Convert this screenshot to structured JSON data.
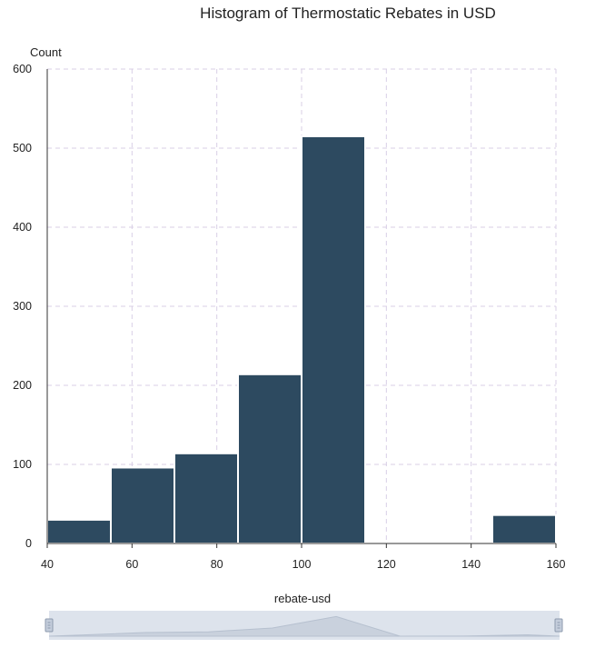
{
  "chart_data": {
    "type": "bar",
    "title": "Histogram of Thermostatic Rebates in USD",
    "xlabel": "rebate-usd",
    "ylabel": "Count",
    "bins": [
      {
        "x0": 40,
        "x1": 55,
        "count": 30
      },
      {
        "x0": 55,
        "x1": 70,
        "count": 96
      },
      {
        "x0": 70,
        "x1": 85,
        "count": 114
      },
      {
        "x0": 85,
        "x1": 100,
        "count": 214
      },
      {
        "x0": 100,
        "x1": 115,
        "count": 515
      },
      {
        "x0": 115,
        "x1": 130,
        "count": 1
      },
      {
        "x0": 130,
        "x1": 145,
        "count": 2
      },
      {
        "x0": 145,
        "x1": 160,
        "count": 36
      }
    ],
    "xlim": [
      40,
      160
    ],
    "ylim": [
      0,
      600
    ],
    "x_ticks": [
      40,
      60,
      80,
      100,
      120,
      140,
      160
    ],
    "y_ticks": [
      0,
      100,
      200,
      300,
      400,
      500,
      600
    ],
    "bar_color": "#2d4a60",
    "grid": true
  },
  "slider": {
    "label": "rebate-usd",
    "range": [
      40,
      160
    ]
  }
}
